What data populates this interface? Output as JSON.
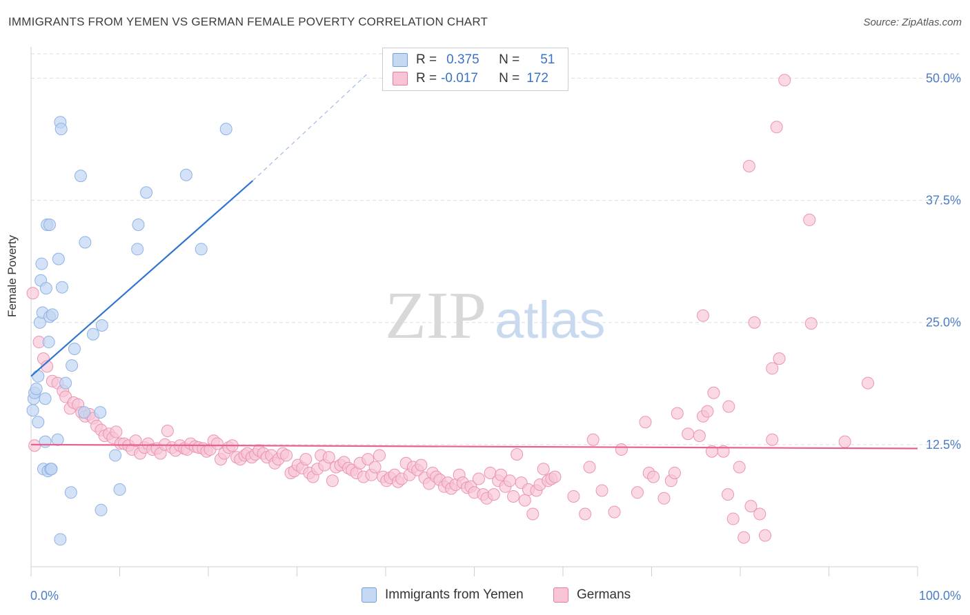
{
  "header": {
    "title": "IMMIGRANTS FROM YEMEN VS GERMAN FEMALE POVERTY CORRELATION CHART",
    "source": "Source: ZipAtlas.com"
  },
  "watermark": {
    "zip": "ZIP",
    "atlas": "atlas"
  },
  "legend": {
    "rows": [
      {
        "r_label": "R =",
        "r_value": "0.375",
        "n_label": "N =",
        "n_value": "51",
        "color": "#6f9fe0",
        "fill": "#c5d9f3"
      },
      {
        "r_label": "R =",
        "r_value": "-0.017",
        "n_label": "N =",
        "n_value": "172",
        "color": "#e77aa0",
        "fill": "#f8c5d6"
      }
    ]
  },
  "colors": {
    "blue_point_fill": "#c0d5f2",
    "blue_point_stroke": "#8fb2e6",
    "blue_line": "#2f74d0",
    "pink_point_fill": "#f8c4d5",
    "pink_point_stroke": "#eb94b2",
    "pink_line": "#e8608f",
    "axis_label_blue": "#4a7cc7",
    "grid": "#dddddd"
  },
  "chart_data": {
    "type": "scatter",
    "title": "IMMIGRANTS FROM YEMEN VS GERMAN FEMALE POVERTY CORRELATION CHART",
    "xlabel": "",
    "ylabel": "Female Poverty",
    "xlim": [
      0,
      100
    ],
    "ylim": [
      0,
      52.5
    ],
    "x_tick_labels": [
      "0.0%",
      "100.0%"
    ],
    "y_ticks": [
      12.5,
      25.0,
      37.5,
      50.0
    ],
    "y_tick_labels": [
      "12.5%",
      "25.0%",
      "37.5%",
      "50.0%"
    ],
    "grid": true,
    "legend_position": "bottom",
    "series": [
      {
        "name": "Immigrants from Yemen",
        "color": "#6f9fe0",
        "trend": {
          "x": [
            0,
            25
          ],
          "y": [
            19.5,
            39.5
          ],
          "dashed_to": [
            38,
            50.5
          ]
        },
        "points": [
          [
            0.2,
            16.0
          ],
          [
            0.3,
            17.2
          ],
          [
            0.4,
            17.8
          ],
          [
            0.6,
            18.2
          ],
          [
            0.8,
            19.5
          ],
          [
            0.8,
            14.8
          ],
          [
            1.0,
            25.0
          ],
          [
            1.1,
            29.3
          ],
          [
            1.2,
            31.0
          ],
          [
            1.3,
            26.0
          ],
          [
            1.4,
            10.0
          ],
          [
            1.6,
            17.2
          ],
          [
            1.6,
            12.8
          ],
          [
            1.7,
            28.5
          ],
          [
            1.8,
            35.0
          ],
          [
            1.9,
            9.8
          ],
          [
            2.0,
            23.0
          ],
          [
            2.1,
            35.0
          ],
          [
            2.1,
            25.6
          ],
          [
            2.2,
            10.0
          ],
          [
            2.3,
            10.0
          ],
          [
            2.4,
            25.8
          ],
          [
            3.0,
            13.0
          ],
          [
            3.1,
            31.5
          ],
          [
            3.3,
            45.5
          ],
          [
            3.3,
            2.8
          ],
          [
            3.4,
            44.8
          ],
          [
            3.5,
            28.6
          ],
          [
            3.9,
            18.8
          ],
          [
            4.5,
            7.6
          ],
          [
            4.6,
            20.6
          ],
          [
            4.9,
            22.3
          ],
          [
            5.6,
            40.0
          ],
          [
            6.0,
            15.8
          ],
          [
            6.1,
            33.2
          ],
          [
            7.0,
            23.8
          ],
          [
            7.8,
            15.8
          ],
          [
            7.9,
            5.8
          ],
          [
            8.0,
            24.7
          ],
          [
            9.5,
            11.4
          ],
          [
            10.0,
            7.9
          ],
          [
            12.0,
            32.5
          ],
          [
            12.1,
            35.0
          ],
          [
            13.0,
            38.3
          ],
          [
            17.5,
            40.1
          ],
          [
            19.2,
            32.5
          ],
          [
            22.0,
            44.8
          ]
        ]
      },
      {
        "name": "Germans",
        "color": "#e77aa0",
        "trend": {
          "x": [
            0,
            100
          ],
          "y": [
            12.5,
            12.1
          ]
        },
        "points": [
          [
            0.2,
            28.0
          ],
          [
            0.4,
            12.4
          ],
          [
            0.9,
            23.0
          ],
          [
            1.4,
            21.3
          ],
          [
            1.8,
            20.5
          ],
          [
            2.4,
            19.0
          ],
          [
            3.0,
            18.8
          ],
          [
            3.6,
            18.0
          ],
          [
            3.9,
            17.4
          ],
          [
            4.4,
            16.2
          ],
          [
            4.8,
            16.8
          ],
          [
            5.3,
            16.6
          ],
          [
            5.7,
            15.8
          ],
          [
            6.1,
            15.4
          ],
          [
            6.6,
            15.6
          ],
          [
            7.0,
            15.2
          ],
          [
            7.4,
            14.4
          ],
          [
            7.9,
            14.0
          ],
          [
            8.3,
            13.4
          ],
          [
            8.8,
            13.6
          ],
          [
            9.2,
            13.2
          ],
          [
            9.6,
            13.8
          ],
          [
            10.1,
            12.6
          ],
          [
            10.5,
            12.6
          ],
          [
            11.0,
            12.4
          ],
          [
            11.4,
            12.0
          ],
          [
            11.8,
            12.9
          ],
          [
            12.3,
            11.6
          ],
          [
            12.8,
            12.2
          ],
          [
            13.2,
            12.6
          ],
          [
            13.7,
            12.0
          ],
          [
            14.2,
            12.1
          ],
          [
            14.6,
            11.6
          ],
          [
            15.1,
            12.5
          ],
          [
            15.4,
            13.9
          ],
          [
            15.9,
            12.2
          ],
          [
            16.3,
            11.9
          ],
          [
            16.8,
            12.4
          ],
          [
            17.3,
            12.1
          ],
          [
            17.6,
            12.0
          ],
          [
            18.0,
            12.6
          ],
          [
            18.5,
            12.3
          ],
          [
            18.9,
            12.2
          ],
          [
            19.4,
            12.1
          ],
          [
            19.8,
            11.8
          ],
          [
            20.2,
            12.0
          ],
          [
            20.6,
            12.9
          ],
          [
            21.0,
            12.6
          ],
          [
            21.4,
            11.0
          ],
          [
            21.8,
            11.6
          ],
          [
            22.3,
            12.2
          ],
          [
            22.7,
            12.4
          ],
          [
            23.2,
            11.2
          ],
          [
            23.6,
            11.0
          ],
          [
            24.1,
            11.4
          ],
          [
            24.4,
            11.6
          ],
          [
            24.9,
            11.2
          ],
          [
            25.3,
            11.5
          ],
          [
            25.7,
            11.9
          ],
          [
            26.2,
            11.6
          ],
          [
            26.6,
            11.2
          ],
          [
            27.1,
            11.4
          ],
          [
            27.5,
            10.6
          ],
          [
            27.9,
            11.0
          ],
          [
            28.4,
            11.6
          ],
          [
            28.8,
            11.4
          ],
          [
            29.3,
            9.6
          ],
          [
            29.7,
            9.8
          ],
          [
            30.1,
            10.4
          ],
          [
            30.6,
            10.1
          ],
          [
            31.0,
            11.0
          ],
          [
            31.4,
            9.6
          ],
          [
            31.8,
            9.2
          ],
          [
            32.3,
            10.0
          ],
          [
            32.7,
            11.4
          ],
          [
            33.1,
            10.4
          ],
          [
            33.6,
            11.2
          ],
          [
            34.0,
            8.8
          ],
          [
            34.4,
            10.2
          ],
          [
            34.9,
            10.4
          ],
          [
            35.3,
            10.7
          ],
          [
            35.8,
            10.1
          ],
          [
            36.2,
            9.9
          ],
          [
            36.7,
            9.6
          ],
          [
            37.1,
            10.6
          ],
          [
            37.5,
            9.2
          ],
          [
            38.0,
            11.0
          ],
          [
            38.4,
            9.4
          ],
          [
            38.8,
            10.2
          ],
          [
            39.3,
            11.4
          ],
          [
            39.7,
            9.2
          ],
          [
            40.1,
            8.8
          ],
          [
            40.5,
            9.1
          ],
          [
            41.0,
            9.4
          ],
          [
            41.4,
            8.7
          ],
          [
            41.8,
            9.0
          ],
          [
            42.3,
            10.6
          ],
          [
            42.7,
            9.4
          ],
          [
            43.1,
            10.2
          ],
          [
            43.6,
            9.9
          ],
          [
            44.0,
            10.4
          ],
          [
            44.4,
            9.1
          ],
          [
            44.9,
            8.5
          ],
          [
            45.3,
            9.6
          ],
          [
            45.7,
            9.2
          ],
          [
            46.1,
            8.9
          ],
          [
            46.6,
            8.2
          ],
          [
            47.0,
            8.6
          ],
          [
            47.4,
            8.0
          ],
          [
            47.9,
            8.4
          ],
          [
            48.3,
            9.4
          ],
          [
            48.7,
            8.6
          ],
          [
            49.2,
            8.1
          ],
          [
            49.6,
            8.2
          ],
          [
            50.0,
            7.6
          ],
          [
            50.5,
            9.0
          ],
          [
            51.0,
            7.4
          ],
          [
            51.4,
            7.0
          ],
          [
            51.8,
            9.6
          ],
          [
            52.2,
            7.4
          ],
          [
            52.7,
            8.8
          ],
          [
            53.0,
            9.4
          ],
          [
            53.5,
            8.2
          ],
          [
            54.0,
            8.8
          ],
          [
            54.4,
            7.2
          ],
          [
            54.8,
            11.5
          ],
          [
            55.3,
            8.6
          ],
          [
            55.7,
            6.8
          ],
          [
            56.1,
            7.9
          ],
          [
            56.6,
            5.4
          ],
          [
            57.0,
            7.8
          ],
          [
            57.4,
            8.4
          ],
          [
            57.8,
            10.0
          ],
          [
            58.3,
            8.8
          ],
          [
            58.7,
            9.0
          ],
          [
            59.1,
            9.2
          ],
          [
            61.2,
            7.2
          ],
          [
            62.5,
            5.4
          ],
          [
            63.0,
            10.2
          ],
          [
            63.4,
            13.0
          ],
          [
            64.4,
            7.8
          ],
          [
            65.8,
            5.6
          ],
          [
            66.6,
            12.0
          ],
          [
            68.4,
            7.6
          ],
          [
            69.7,
            9.6
          ],
          [
            70.2,
            9.2
          ],
          [
            71.4,
            7.0
          ],
          [
            72.2,
            8.8
          ],
          [
            72.6,
            9.6
          ],
          [
            74.1,
            13.6
          ],
          [
            75.8,
            15.4
          ],
          [
            75.4,
            13.4
          ],
          [
            76.8,
            11.8
          ],
          [
            78.1,
            11.8
          ],
          [
            78.6,
            7.4
          ],
          [
            79.2,
            4.9
          ],
          [
            79.9,
            10.2
          ],
          [
            80.4,
            3.0
          ],
          [
            81.2,
            6.2
          ],
          [
            82.2,
            5.4
          ],
          [
            82.8,
            3.2
          ],
          [
            83.6,
            13.0
          ],
          [
            91.8,
            12.8
          ],
          [
            69.3,
            14.8
          ],
          [
            72.9,
            15.7
          ],
          [
            77.0,
            17.8
          ],
          [
            78.7,
            16.4
          ],
          [
            76.3,
            15.9
          ],
          [
            81.0,
            41.0
          ],
          [
            81.6,
            25.0
          ],
          [
            83.6,
            20.3
          ],
          [
            84.1,
            45.0
          ],
          [
            85.0,
            49.8
          ],
          [
            87.8,
            35.5
          ],
          [
            88.0,
            24.9
          ],
          [
            94.4,
            18.8
          ],
          [
            84.4,
            21.3
          ],
          [
            75.8,
            25.7
          ]
        ]
      }
    ]
  }
}
